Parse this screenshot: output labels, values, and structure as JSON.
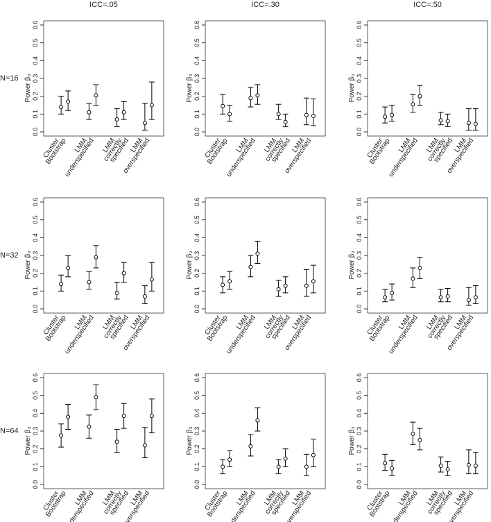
{
  "column_titles": [
    "ICC=.05",
    "ICC=.30",
    "ICC=.50"
  ],
  "row_labels": [
    "N=16",
    "N=32",
    "N=64"
  ],
  "chart_data": [
    {
      "type": "errorbar",
      "ylabel": "Power β₃",
      "ylim": [
        0,
        0.6
      ],
      "yticks": [
        {
          "value": 0,
          "label": "0.0"
        },
        0.1,
        0.2,
        0.3,
        0.4,
        0.5,
        0.6
      ],
      "categories": [
        [
          "Cluster",
          "Bootstrap"
        ],
        [
          "LMM",
          "underspecified"
        ],
        [
          "LMM",
          "correctly",
          "specified"
        ],
        [
          "LMM",
          "overspecified"
        ]
      ],
      "series": [
        {
          "color": "#000000",
          "values": [
            0.14,
            0.11,
            0.07,
            0.05
          ],
          "lower": [
            0.1,
            0.07,
            0.03,
            0.01
          ],
          "upper": [
            0.2,
            0.16,
            0.13,
            0.16
          ]
        },
        {
          "color": "#000000",
          "values": [
            0.17,
            0.205,
            0.11,
            0.15
          ],
          "lower": [
            0.12,
            0.15,
            0.07,
            0.07
          ],
          "upper": [
            0.23,
            0.265,
            0.17,
            0.28
          ]
        }
      ]
    },
    {
      "type": "errorbar",
      "ylabel": "Power β₃",
      "ylim": [
        0,
        0.6
      ],
      "yticks": [
        {
          "value": 0,
          "label": "0.0"
        },
        0.1,
        0.2,
        0.3,
        0.4,
        0.5,
        0.6
      ],
      "categories": [
        [
          "Cluster",
          "Bootstrap"
        ],
        [
          "LMM",
          "underspecified"
        ],
        [
          "LMM",
          "correctly",
          "specified"
        ],
        [
          "LMM",
          "overspecified"
        ]
      ],
      "series": [
        {
          "color": "#000000",
          "values": [
            0.145,
            0.19,
            0.1,
            0.095
          ],
          "lower": [
            0.1,
            0.14,
            0.07,
            0.04
          ],
          "upper": [
            0.21,
            0.25,
            0.155,
            0.19
          ]
        },
        {
          "color": "#000000",
          "values": [
            0.1,
            0.205,
            0.055,
            0.09
          ],
          "lower": [
            0.06,
            0.155,
            0.03,
            0.035
          ],
          "upper": [
            0.15,
            0.265,
            0.1,
            0.185
          ]
        }
      ]
    },
    {
      "type": "errorbar",
      "ylabel": "Power β₃",
      "ylim": [
        0,
        0.6
      ],
      "yticks": [
        {
          "value": 0,
          "label": "0.0"
        },
        0.1,
        0.2,
        0.3,
        0.4,
        0.5,
        0.6
      ],
      "categories": [
        [
          "Cluster",
          "Bootstrap"
        ],
        [
          "LMM",
          "underspecified"
        ],
        [
          "LMM",
          "correctly",
          "specified"
        ],
        [
          "LMM",
          "overspecified"
        ]
      ],
      "series": [
        {
          "color": "#000000",
          "values": [
            0.085,
            0.155,
            0.065,
            0.05
          ],
          "lower": [
            0.05,
            0.11,
            0.04,
            0.01
          ],
          "upper": [
            0.14,
            0.21,
            0.11,
            0.13
          ]
        },
        {
          "color": "#000000",
          "values": [
            0.095,
            0.2,
            0.06,
            0.045
          ],
          "lower": [
            0.06,
            0.15,
            0.03,
            0.01
          ],
          "upper": [
            0.15,
            0.26,
            0.1,
            0.13
          ]
        }
      ]
    },
    {
      "type": "errorbar",
      "ylabel": "Power β₃",
      "ylim": [
        0,
        0.6
      ],
      "yticks": [
        {
          "value": 0,
          "label": "0.0"
        },
        0.1,
        0.2,
        0.3,
        0.4,
        0.5,
        0.6
      ],
      "categories": [
        [
          "Cluster",
          "Bootstrap"
        ],
        [
          "LMM",
          "underspecified"
        ],
        [
          "LMM",
          "correctly",
          "specified"
        ],
        [
          "LMM",
          "overspecified"
        ]
      ],
      "series": [
        {
          "color": "#000000",
          "values": [
            0.14,
            0.15,
            0.09,
            0.07
          ],
          "lower": [
            0.1,
            0.11,
            0.055,
            0.03
          ],
          "upper": [
            0.19,
            0.21,
            0.15,
            0.13
          ]
        },
        {
          "color": "#000000",
          "values": [
            0.23,
            0.29,
            0.2,
            0.165
          ],
          "lower": [
            0.18,
            0.23,
            0.15,
            0.1
          ],
          "upper": [
            0.3,
            0.355,
            0.26,
            0.26
          ]
        }
      ]
    },
    {
      "type": "errorbar",
      "ylabel": "Power β₃",
      "ylim": [
        0,
        0.6
      ],
      "yticks": [
        {
          "value": 0,
          "label": "0.0"
        },
        0.1,
        0.2,
        0.3,
        0.4,
        0.5,
        0.6
      ],
      "categories": [
        [
          "Cluster",
          "Bootstrap"
        ],
        [
          "LMM",
          "underspecified"
        ],
        [
          "LMM",
          "correctly",
          "specified"
        ],
        [
          "LMM",
          "overspecified"
        ]
      ],
      "series": [
        {
          "color": "#000000",
          "values": [
            0.135,
            0.235,
            0.11,
            0.13
          ],
          "lower": [
            0.09,
            0.18,
            0.07,
            0.07
          ],
          "upper": [
            0.18,
            0.3,
            0.16,
            0.22
          ]
        },
        {
          "color": "#000000",
          "values": [
            0.155,
            0.31,
            0.13,
            0.155
          ],
          "lower": [
            0.11,
            0.255,
            0.09,
            0.09
          ],
          "upper": [
            0.21,
            0.38,
            0.18,
            0.245
          ]
        }
      ]
    },
    {
      "type": "errorbar",
      "ylabel": "Power β₃",
      "ylim": [
        0,
        0.6
      ],
      "yticks": [
        {
          "value": 0,
          "label": "0.0"
        },
        0.1,
        0.2,
        0.3,
        0.4,
        0.5,
        0.6
      ],
      "categories": [
        [
          "Cluster",
          "Bootstrap"
        ],
        [
          "LMM",
          "underspecified"
        ],
        [
          "LMM",
          "correctly",
          "specified"
        ],
        [
          "LMM",
          "overspecified"
        ]
      ],
      "series": [
        {
          "color": "#000000",
          "values": [
            0.065,
            0.17,
            0.065,
            0.05
          ],
          "lower": [
            0.04,
            0.12,
            0.04,
            0.02
          ],
          "upper": [
            0.11,
            0.23,
            0.11,
            0.12
          ]
        },
        {
          "color": "#000000",
          "values": [
            0.09,
            0.23,
            0.07,
            0.065
          ],
          "lower": [
            0.05,
            0.17,
            0.04,
            0.03
          ],
          "upper": [
            0.14,
            0.29,
            0.115,
            0.13
          ]
        }
      ]
    },
    {
      "type": "errorbar",
      "ylabel": "Power β₃",
      "ylim": [
        0,
        0.6
      ],
      "yticks": [
        {
          "value": 0,
          "label": "0.0"
        },
        0.1,
        0.2,
        0.3,
        0.4,
        0.5,
        0.6
      ],
      "categories": [
        [
          "Cluster",
          "Bootstrap"
        ],
        [
          "LMM",
          "underspecified"
        ],
        [
          "LMM",
          "correctly",
          "specified"
        ],
        [
          "LMM",
          "overspecified"
        ]
      ],
      "series": [
        {
          "color": "#000000",
          "values": [
            0.275,
            0.325,
            0.24,
            0.22
          ],
          "lower": [
            0.21,
            0.26,
            0.18,
            0.15
          ],
          "upper": [
            0.34,
            0.39,
            0.31,
            0.32
          ]
        },
        {
          "color": "#000000",
          "values": [
            0.38,
            0.49,
            0.385,
            0.385
          ],
          "lower": [
            0.31,
            0.42,
            0.315,
            0.29
          ],
          "upper": [
            0.45,
            0.56,
            0.455,
            0.48
          ]
        }
      ]
    },
    {
      "type": "errorbar",
      "ylabel": "Power β₃",
      "ylim": [
        0,
        0.6
      ],
      "yticks": [
        {
          "value": 0,
          "label": "0.0"
        },
        0.1,
        0.2,
        0.3,
        0.4,
        0.5,
        0.6
      ],
      "categories": [
        [
          "Cluster",
          "Bootstrap"
        ],
        [
          "LMM",
          "underspecified"
        ],
        [
          "LMM",
          "correctly",
          "specified"
        ],
        [
          "LMM",
          "overspecified"
        ]
      ],
      "series": [
        {
          "color": "#000000",
          "values": [
            0.1,
            0.215,
            0.1,
            0.1
          ],
          "lower": [
            0.06,
            0.16,
            0.06,
            0.05
          ],
          "upper": [
            0.14,
            0.28,
            0.14,
            0.17
          ]
        },
        {
          "color": "#000000",
          "values": [
            0.14,
            0.36,
            0.145,
            0.165
          ],
          "lower": [
            0.1,
            0.3,
            0.1,
            0.1
          ],
          "upper": [
            0.19,
            0.43,
            0.2,
            0.255
          ]
        }
      ]
    },
    {
      "type": "errorbar",
      "ylabel": "Power β₃",
      "ylim": [
        0,
        0.6
      ],
      "yticks": [
        {
          "value": 0,
          "label": "0.0"
        },
        0.1,
        0.2,
        0.3,
        0.4,
        0.5,
        0.6
      ],
      "categories": [
        [
          "Cluster",
          "Bootstrap"
        ],
        [
          "LMM",
          "underspecified"
        ],
        [
          "LMM",
          "correctly",
          "specified"
        ],
        [
          "LMM",
          "overspecified"
        ]
      ],
      "series": [
        {
          "color": "#000000",
          "values": [
            0.12,
            0.285,
            0.105,
            0.11
          ],
          "lower": [
            0.08,
            0.225,
            0.07,
            0.06
          ],
          "upper": [
            0.17,
            0.35,
            0.155,
            0.195
          ]
        },
        {
          "color": "#000000",
          "values": [
            0.09,
            0.25,
            0.085,
            0.105
          ],
          "lower": [
            0.05,
            0.195,
            0.05,
            0.06
          ],
          "upper": [
            0.135,
            0.315,
            0.13,
            0.18
          ]
        }
      ]
    }
  ]
}
